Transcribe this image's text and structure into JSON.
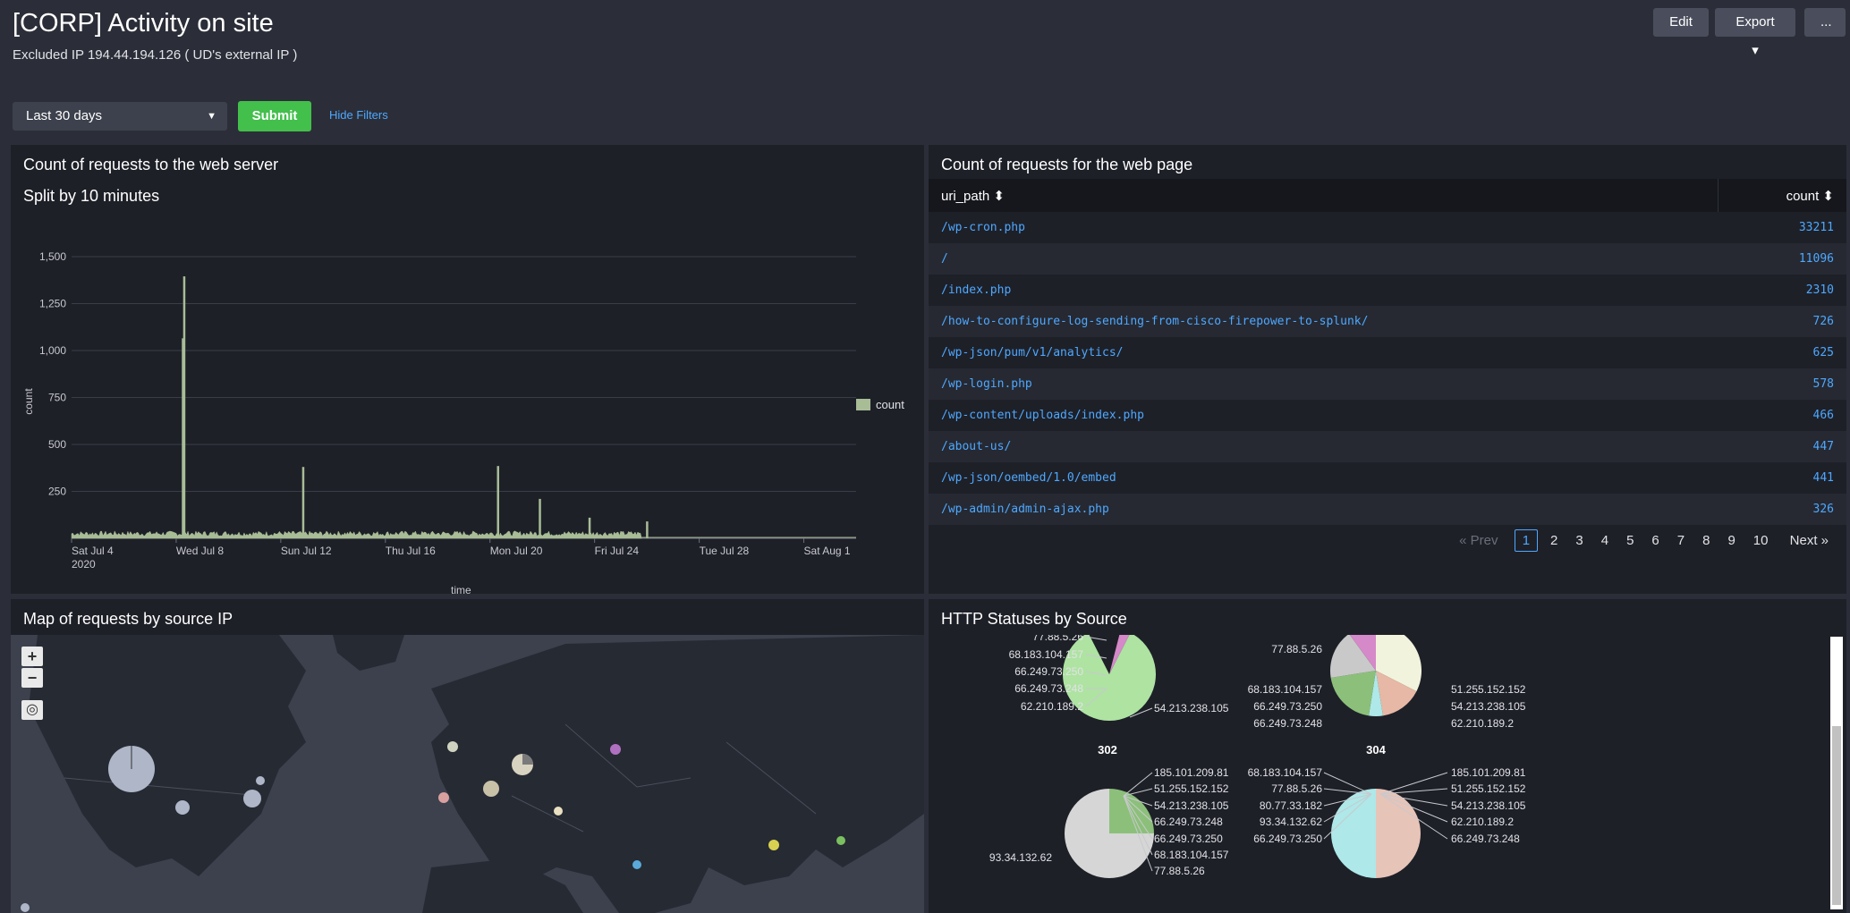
{
  "header": {
    "title": "[CORP] Activity on site",
    "subtitle": "Excluded IP 194.44.194.126 ( UD's external IP )",
    "edit_label": "Edit",
    "export_label": "Export ▾",
    "more_label": "..."
  },
  "filters": {
    "time_range": "Last 30 days",
    "submit_label": "Submit",
    "hide_filters_label": "Hide Filters"
  },
  "panel_server": {
    "title": "Count of requests to the web server",
    "subtitle": "Split by 10 minutes",
    "chart_data": {
      "type": "area",
      "title": "Split by 10 minutes",
      "xlabel": "_time",
      "ylabel": "count",
      "y_ticks": [
        "1,500",
        "1,250",
        "1,000",
        "750",
        "500",
        "250"
      ],
      "ylim": [
        0,
        1500
      ],
      "x_ticks": [
        "Sat Jul 4\n2020",
        "Wed Jul 8",
        "Sun Jul 12",
        "Thu Jul 16",
        "Mon Jul 20",
        "Fri Jul 24",
        "Tue Jul 28",
        "Sat Aug 1"
      ],
      "x_start_label": "Sat Jul 4",
      "x_year_label": "2020",
      "legend": [
        "count"
      ],
      "legend_position": "right",
      "grid": true,
      "spikes": [
        {
          "day": 4.3,
          "value": 1395
        },
        {
          "day": 4.25,
          "value": 1065
        },
        {
          "day": 8.85,
          "value": 380
        },
        {
          "day": 16.3,
          "value": 385
        },
        {
          "day": 17.9,
          "value": 210
        },
        {
          "day": 19.8,
          "value": 110
        },
        {
          "day": 22.0,
          "value": 90
        }
      ],
      "baseline_value": 30,
      "data_end_day": 21.8,
      "axis_days": 30
    }
  },
  "panel_page": {
    "title": "Count of requests for the web page",
    "columns": [
      "uri_path ⬍",
      "count ⬍"
    ],
    "rows": [
      {
        "path": "/wp-cron.php",
        "count": "33211"
      },
      {
        "path": "/",
        "count": "11096"
      },
      {
        "path": "/index.php",
        "count": "2310"
      },
      {
        "path": "/how-to-configure-log-sending-from-cisco-firepower-to-splunk/",
        "count": "726"
      },
      {
        "path": "/wp-json/pum/v1/analytics/",
        "count": "625"
      },
      {
        "path": "/wp-login.php",
        "count": "578"
      },
      {
        "path": "/wp-content/uploads/index.php",
        "count": "466"
      },
      {
        "path": "/about-us/",
        "count": "447"
      },
      {
        "path": "/wp-json/oembed/1.0/embed",
        "count": "441"
      },
      {
        "path": "/wp-admin/admin-ajax.php",
        "count": "326"
      }
    ],
    "pager": {
      "prev": "« Prev",
      "pages": [
        "1",
        "2",
        "3",
        "4",
        "5",
        "6",
        "7",
        "8",
        "9",
        "10"
      ],
      "next": "Next »"
    }
  },
  "panel_map": {
    "title": "Map of requests by source IP",
    "zoom_in": "+",
    "zoom_out": "−",
    "locate_icon": "target-icon"
  },
  "panel_status": {
    "title": "HTTP Statuses by Source",
    "pie1_labels": [
      "77.88.5.26",
      "68.183.104.157",
      "66.249.73.250",
      "66.249.73.248",
      "62.210.189.2",
      "54.213.238.105"
    ],
    "pie2_labels_left": [
      "77.88.5.26",
      "68.183.104.157",
      "66.249.73.250",
      "66.249.73.248"
    ],
    "pie2_labels_right": [
      "51.255.152.152",
      "54.213.238.105",
      "62.210.189.2"
    ],
    "pie3_title": "302",
    "pie3_labels_right": [
      "185.101.209.81",
      "51.255.152.152",
      "54.213.238.105",
      "66.249.73.248",
      "66.249.73.250",
      "68.183.104.157",
      "77.88.5.26"
    ],
    "pie3_labels_left": [
      "93.34.132.62"
    ],
    "pie4_title": "304",
    "pie4_labels_left": [
      "68.183.104.157",
      "77.88.5.26",
      "80.77.33.182",
      "93.34.132.62",
      "66.249.73.250"
    ],
    "pie4_labels_right": [
      "185.101.209.81",
      "51.255.152.152",
      "54.213.238.105",
      "62.210.189.2",
      "66.249.73.248"
    ]
  }
}
